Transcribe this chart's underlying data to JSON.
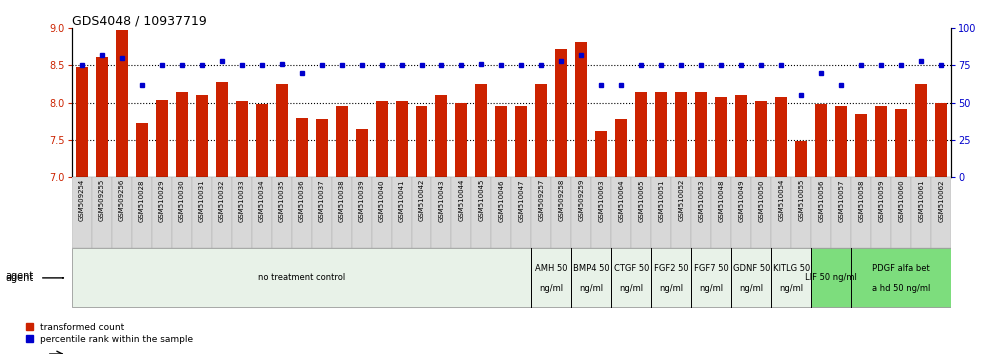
{
  "title": "GDS4048 / 10937719",
  "categories": [
    "GSM509254",
    "GSM509255",
    "GSM509256",
    "GSM510028",
    "GSM510029",
    "GSM510030",
    "GSM510031",
    "GSM510032",
    "GSM510033",
    "GSM510034",
    "GSM510035",
    "GSM510036",
    "GSM510037",
    "GSM510038",
    "GSM510039",
    "GSM510040",
    "GSM510041",
    "GSM510042",
    "GSM510043",
    "GSM510044",
    "GSM510045",
    "GSM510046",
    "GSM510047",
    "GSM509257",
    "GSM509258",
    "GSM509259",
    "GSM510063",
    "GSM510064",
    "GSM510065",
    "GSM510051",
    "GSM510052",
    "GSM510053",
    "GSM510048",
    "GSM510049",
    "GSM510050",
    "GSM510054",
    "GSM510055",
    "GSM510056",
    "GSM510057",
    "GSM510058",
    "GSM510059",
    "GSM510060",
    "GSM510061",
    "GSM510062"
  ],
  "bar_values": [
    8.48,
    8.62,
    8.98,
    7.72,
    8.04,
    8.15,
    8.1,
    8.28,
    8.02,
    7.98,
    8.25,
    7.8,
    7.78,
    7.95,
    7.65,
    8.02,
    8.02,
    7.95,
    8.1,
    8.0,
    8.25,
    7.95,
    7.95,
    8.25,
    8.72,
    8.82,
    7.62,
    7.78,
    8.14,
    8.14,
    8.14,
    8.14,
    8.08,
    8.1,
    8.02,
    8.08,
    7.48,
    7.98,
    7.95,
    7.85,
    7.95,
    7.92,
    8.25,
    8.0
  ],
  "percentile_values": [
    75,
    82,
    80,
    62,
    75,
    75,
    75,
    78,
    75,
    75,
    76,
    70,
    75,
    75,
    75,
    75,
    75,
    75,
    75,
    75,
    76,
    75,
    75,
    75,
    78,
    82,
    62,
    62,
    75,
    75,
    75,
    75,
    75,
    75,
    75,
    75,
    55,
    70,
    62,
    75,
    75,
    75,
    78,
    75
  ],
  "ylim_left": [
    7.0,
    9.0
  ],
  "ylim_right": [
    0,
    100
  ],
  "yticks_left": [
    7.0,
    7.5,
    8.0,
    8.5,
    9.0
  ],
  "yticks_right": [
    0,
    25,
    50,
    75,
    100
  ],
  "bar_color": "#cc2200",
  "dot_color": "#0000cc",
  "background_chart": "#ffffff",
  "agent_groups": [
    {
      "label": "no treatment control",
      "start": 0,
      "end": 22,
      "color": "#e8f2e8",
      "bright": false
    },
    {
      "label": "AMH 50\nng/ml",
      "start": 23,
      "end": 24,
      "color": "#e8f2e8",
      "bright": false
    },
    {
      "label": "BMP4 50\nng/ml",
      "start": 25,
      "end": 26,
      "color": "#e8f2e8",
      "bright": false
    },
    {
      "label": "CTGF 50\nng/ml",
      "start": 27,
      "end": 28,
      "color": "#e8f2e8",
      "bright": false
    },
    {
      "label": "FGF2 50\nng/ml",
      "start": 29,
      "end": 30,
      "color": "#e8f2e8",
      "bright": false
    },
    {
      "label": "FGF7 50\nng/ml",
      "start": 31,
      "end": 32,
      "color": "#e8f2e8",
      "bright": false
    },
    {
      "label": "GDNF 50\nng/ml",
      "start": 33,
      "end": 34,
      "color": "#e8f2e8",
      "bright": false
    },
    {
      "label": "KITLG 50\nng/ml",
      "start": 35,
      "end": 36,
      "color": "#e8f2e8",
      "bright": false
    },
    {
      "label": "LIF 50 ng/ml",
      "start": 37,
      "end": 38,
      "color": "#7ddd7d",
      "bright": true
    },
    {
      "label": "PDGF alfa bet\na hd 50 ng/ml",
      "start": 39,
      "end": 43,
      "color": "#7ddd7d",
      "bright": true
    }
  ]
}
